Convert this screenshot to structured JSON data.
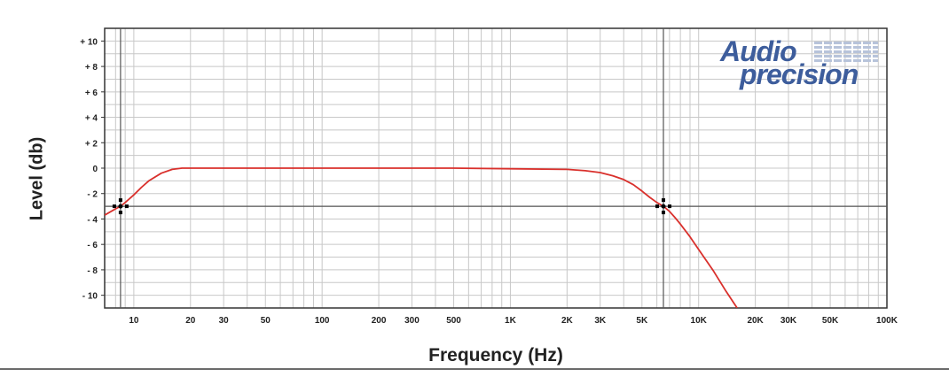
{
  "chart_data": {
    "type": "line",
    "xlabel": "Frequency (Hz)",
    "ylabel": "Level (db)",
    "x_scale": "log",
    "xlim": [
      7,
      100000
    ],
    "ylim": [
      -11,
      11
    ],
    "grid": true,
    "x_ticks": [
      {
        "value": 10,
        "label": "10"
      },
      {
        "value": 20,
        "label": "20"
      },
      {
        "value": 30,
        "label": "30"
      },
      {
        "value": 50,
        "label": "50"
      },
      {
        "value": 100,
        "label": "100"
      },
      {
        "value": 200,
        "label": "200"
      },
      {
        "value": 300,
        "label": "300"
      },
      {
        "value": 500,
        "label": "500"
      },
      {
        "value": 1000,
        "label": "1K"
      },
      {
        "value": 2000,
        "label": "2K"
      },
      {
        "value": 3000,
        "label": "3K"
      },
      {
        "value": 5000,
        "label": "5K"
      },
      {
        "value": 10000,
        "label": "10K"
      },
      {
        "value": 20000,
        "label": "20K"
      },
      {
        "value": 30000,
        "label": "30K"
      },
      {
        "value": 50000,
        "label": "50K"
      },
      {
        "value": 100000,
        "label": "100K"
      }
    ],
    "y_ticks": [
      {
        "value": 10,
        "label": "+ 10"
      },
      {
        "value": 8,
        "label": "+ 8"
      },
      {
        "value": 6,
        "label": "+ 6"
      },
      {
        "value": 4,
        "label": "+ 4"
      },
      {
        "value": 2,
        "label": "+ 2"
      },
      {
        "value": 0,
        "label": "0"
      },
      {
        "value": -2,
        "label": "- 2"
      },
      {
        "value": -4,
        "label": "- 4"
      },
      {
        "value": -6,
        "label": "- 6"
      },
      {
        "value": -8,
        "label": "- 8"
      },
      {
        "value": -10,
        "label": "- 10"
      }
    ],
    "series": [
      {
        "color": "#d9302c",
        "x": [
          7,
          8,
          8.5,
          9,
          10,
          11,
          12,
          14,
          16,
          18,
          20,
          30,
          50,
          100,
          200,
          500,
          1000,
          2000,
          2500,
          3000,
          3500,
          4000,
          4500,
          5000,
          5500,
          6000,
          6500,
          7000,
          7500,
          8000,
          9000,
          10000,
          12000,
          14000,
          16000
        ],
        "y": [
          -3.7,
          -3.2,
          -3.0,
          -2.7,
          -2.1,
          -1.5,
          -1.0,
          -0.4,
          -0.1,
          0,
          0,
          0,
          0,
          0,
          0,
          0,
          -0.05,
          -0.1,
          -0.2,
          -0.35,
          -0.6,
          -0.9,
          -1.3,
          -1.8,
          -2.3,
          -2.7,
          -3.0,
          -3.4,
          -3.9,
          -4.4,
          -5.4,
          -6.4,
          -8.1,
          -9.7,
          -11
        ]
      }
    ],
    "markers": [
      {
        "x": 8.5,
        "y": -3
      },
      {
        "x": 6500,
        "y": -3
      }
    ],
    "cursor_lines": [
      {
        "x": 8.5,
        "y": -3
      },
      {
        "x": 6500,
        "y": -3
      }
    ],
    "brand": {
      "line1": "Audio",
      "line2": "precision",
      "color": "#3d5d9c"
    },
    "colors": {
      "grid": "#c8c8c8",
      "frame": "#333333",
      "cursor": "#555555",
      "marker": "#000000"
    }
  }
}
